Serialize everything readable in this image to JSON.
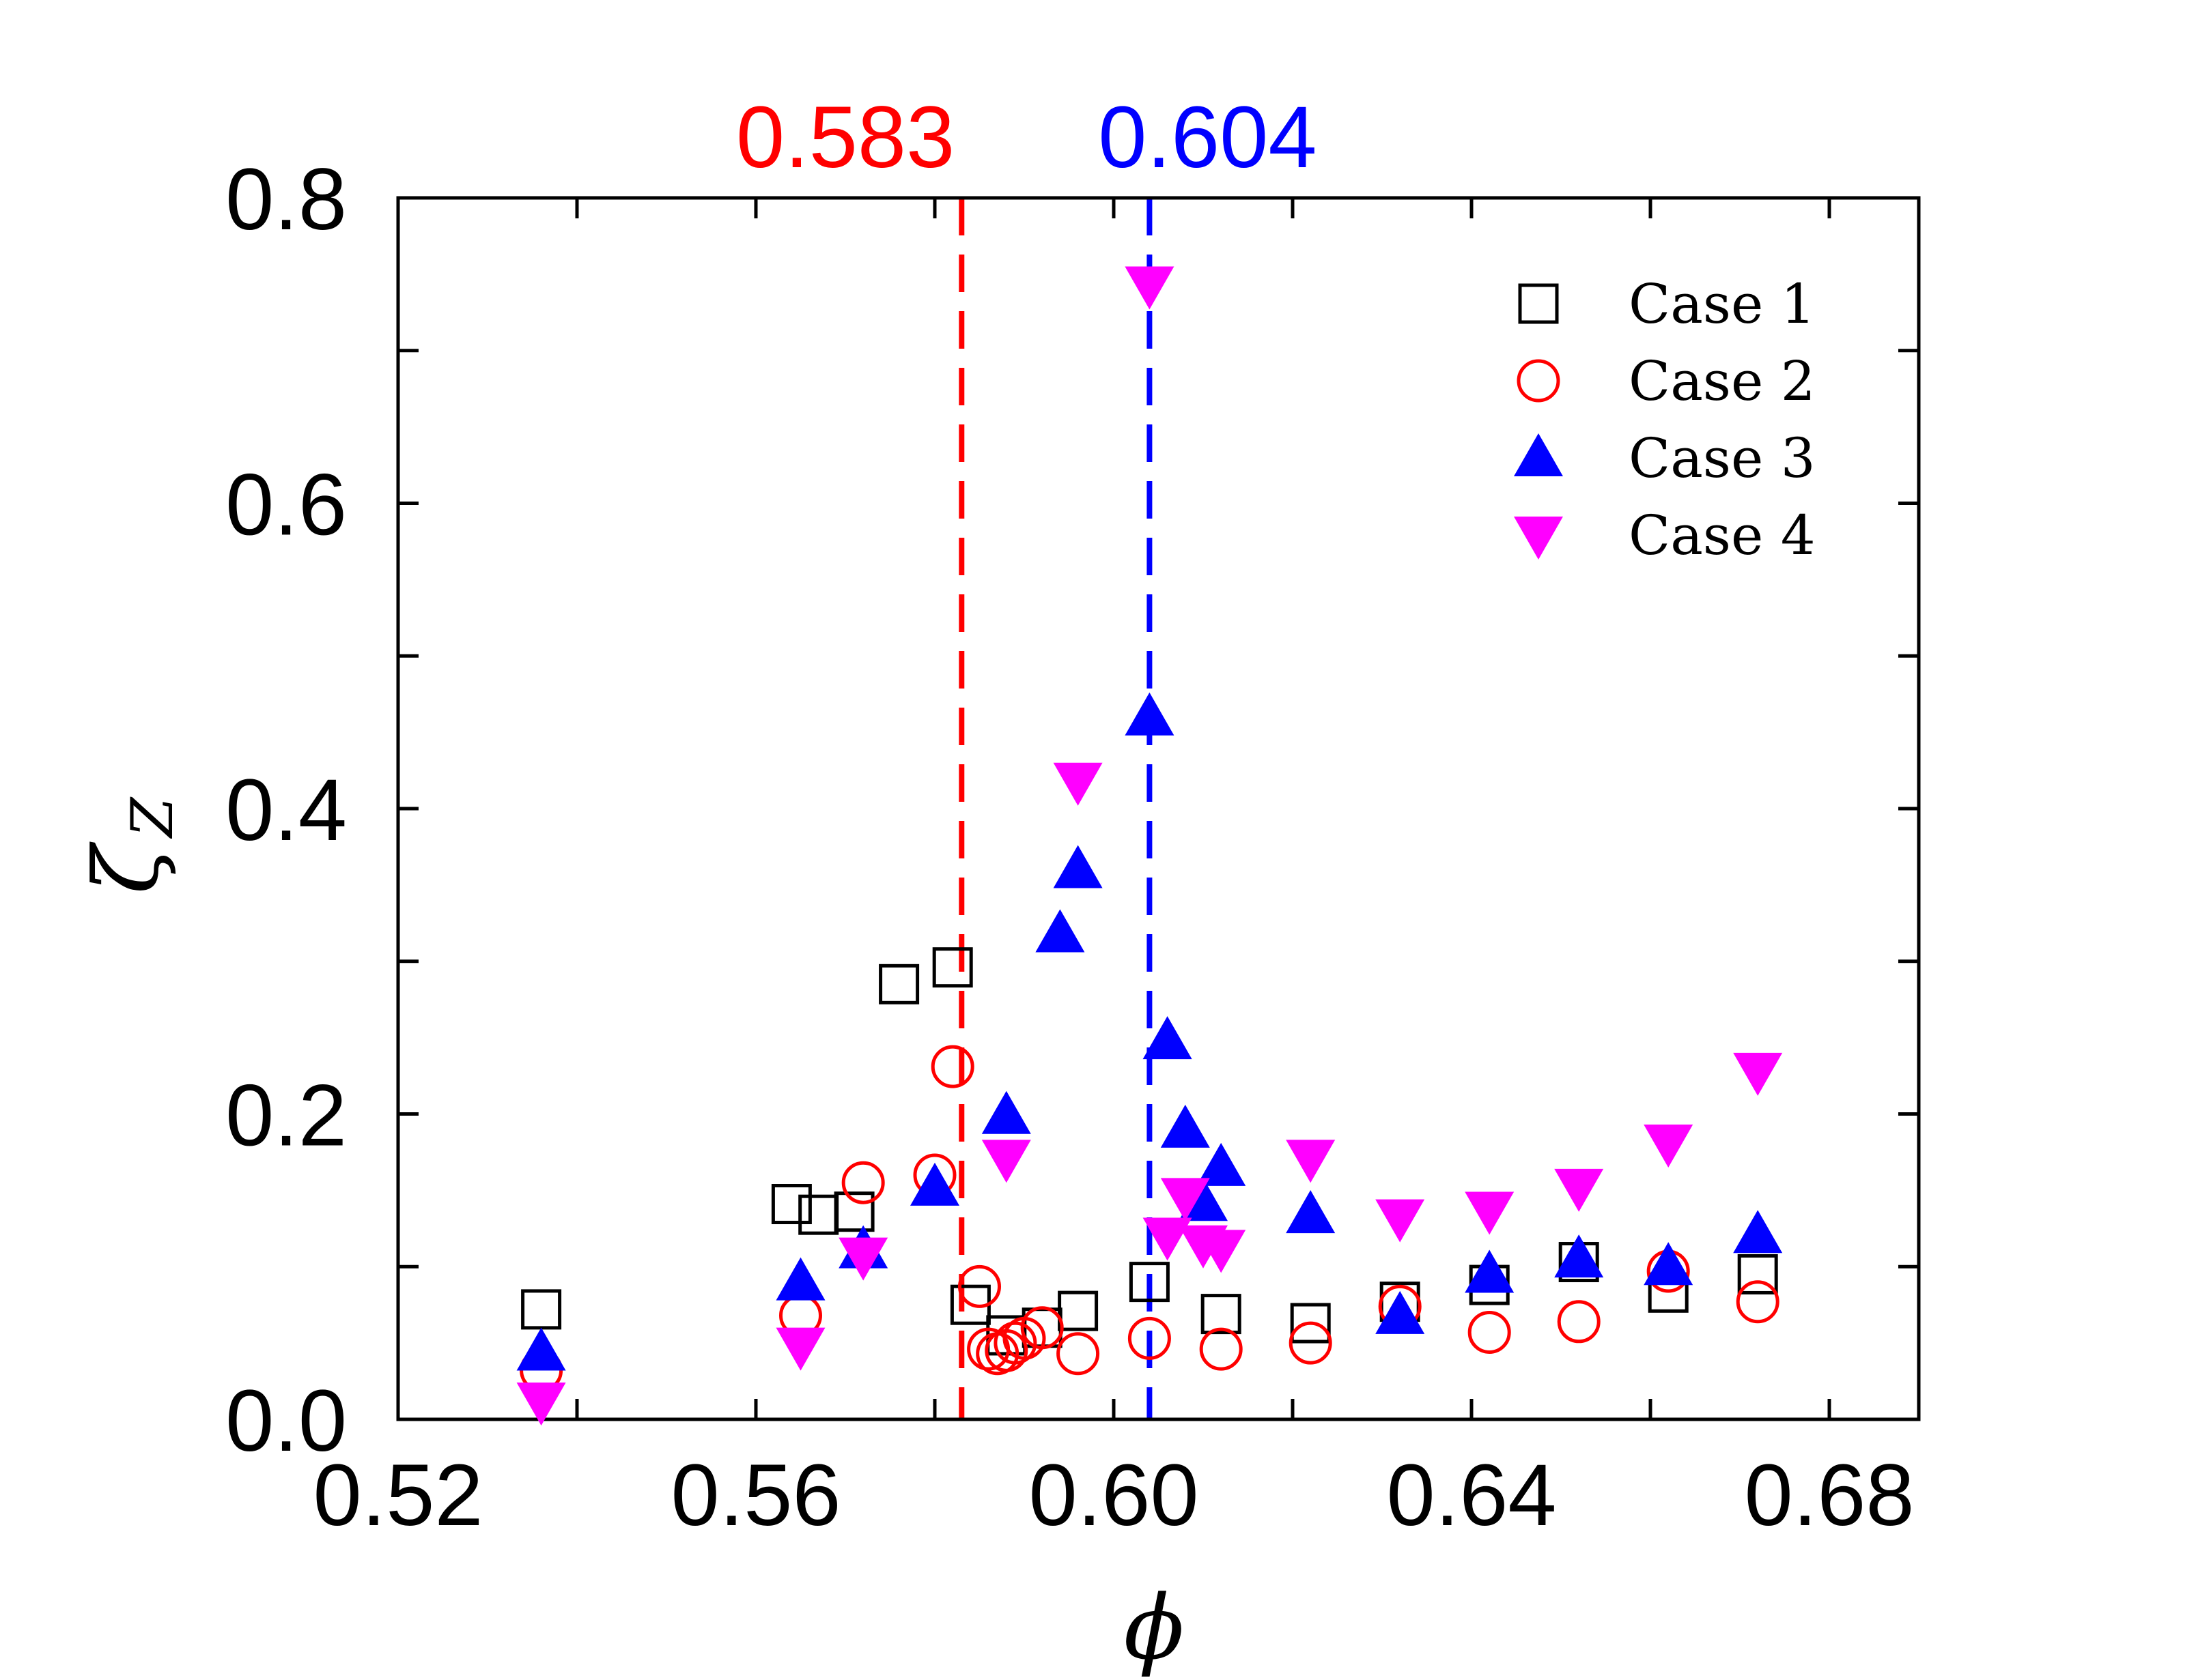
{
  "chart_data": {
    "type": "scatter",
    "title": "",
    "xlabel": "ϕ",
    "ylabel": "ζ",
    "ylabel_subscript": "Z",
    "xlim": [
      0.52,
      0.69
    ],
    "ylim": [
      0.0,
      0.8
    ],
    "xticks": [
      0.52,
      0.54,
      0.56,
      0.58,
      0.6,
      0.62,
      0.64,
      0.66,
      0.68
    ],
    "xtick_labels": [
      "0.52",
      "",
      "0.56",
      "",
      "0.60",
      "",
      "0.64",
      "",
      "0.68"
    ],
    "yticks": [
      0.0,
      0.1,
      0.2,
      0.3,
      0.4,
      0.5,
      0.6,
      0.7,
      0.8
    ],
    "ytick_labels": [
      "0.0",
      "",
      "0.2",
      "",
      "0.4",
      "",
      "0.6",
      "",
      "0.8"
    ],
    "legend_position": "top-right",
    "reference_lines": [
      {
        "x": 0.583,
        "label": "0.583",
        "color": "#ff0000"
      },
      {
        "x": 0.604,
        "label": "0.604",
        "color": "#0000ff"
      }
    ],
    "series": [
      {
        "name": "Case 1",
        "marker": "square-open",
        "color": "#000000",
        "points": [
          [
            0.536,
            0.072
          ],
          [
            0.564,
            0.141
          ],
          [
            0.567,
            0.134
          ],
          [
            0.571,
            0.136
          ],
          [
            0.576,
            0.285
          ],
          [
            0.582,
            0.296
          ],
          [
            0.584,
            0.075
          ],
          [
            0.588,
            0.055
          ],
          [
            0.592,
            0.06
          ],
          [
            0.596,
            0.071
          ],
          [
            0.604,
            0.09
          ],
          [
            0.612,
            0.069
          ],
          [
            0.622,
            0.063
          ],
          [
            0.632,
            0.077
          ],
          [
            0.642,
            0.088
          ],
          [
            0.652,
            0.103
          ],
          [
            0.662,
            0.083
          ],
          [
            0.672,
            0.095
          ]
        ]
      },
      {
        "name": "Case 2",
        "marker": "circle-open",
        "color": "#ff0000",
        "points": [
          [
            0.536,
            0.032
          ],
          [
            0.565,
            0.068
          ],
          [
            0.572,
            0.155
          ],
          [
            0.58,
            0.16
          ],
          [
            0.582,
            0.231
          ],
          [
            0.585,
            0.087
          ],
          [
            0.586,
            0.046
          ],
          [
            0.587,
            0.043
          ],
          [
            0.588,
            0.045
          ],
          [
            0.589,
            0.05
          ],
          [
            0.59,
            0.053
          ],
          [
            0.592,
            0.06
          ],
          [
            0.596,
            0.043
          ],
          [
            0.604,
            0.053
          ],
          [
            0.612,
            0.046
          ],
          [
            0.622,
            0.05
          ],
          [
            0.632,
            0.074
          ],
          [
            0.642,
            0.057
          ],
          [
            0.652,
            0.064
          ],
          [
            0.662,
            0.097
          ],
          [
            0.672,
            0.077
          ]
        ]
      },
      {
        "name": "Case 3",
        "marker": "triangle-up-filled",
        "color": "#0000ff",
        "points": [
          [
            0.536,
            0.044
          ],
          [
            0.565,
            0.09
          ],
          [
            0.572,
            0.111
          ],
          [
            0.58,
            0.152
          ],
          [
            0.588,
            0.199
          ],
          [
            0.594,
            0.318
          ],
          [
            0.596,
            0.36
          ],
          [
            0.604,
            0.46
          ],
          [
            0.606,
            0.248
          ],
          [
            0.608,
            0.19
          ],
          [
            0.61,
            0.142
          ],
          [
            0.612,
            0.165
          ],
          [
            0.622,
            0.134
          ],
          [
            0.632,
            0.068
          ],
          [
            0.642,
            0.095
          ],
          [
            0.652,
            0.105
          ],
          [
            0.662,
            0.1
          ],
          [
            0.672,
            0.121
          ]
        ]
      },
      {
        "name": "Case 4",
        "marker": "triangle-down-filled",
        "color": "#ff00ff",
        "points": [
          [
            0.536,
            0.012
          ],
          [
            0.565,
            0.048
          ],
          [
            0.572,
            0.107
          ],
          [
            0.588,
            0.171
          ],
          [
            0.596,
            0.418
          ],
          [
            0.604,
            0.743
          ],
          [
            0.606,
            0.12
          ],
          [
            0.608,
            0.146
          ],
          [
            0.61,
            0.115
          ],
          [
            0.612,
            0.112
          ],
          [
            0.622,
            0.171
          ],
          [
            0.632,
            0.132
          ],
          [
            0.642,
            0.137
          ],
          [
            0.652,
            0.152
          ],
          [
            0.662,
            0.181
          ],
          [
            0.672,
            0.228
          ]
        ]
      }
    ]
  }
}
